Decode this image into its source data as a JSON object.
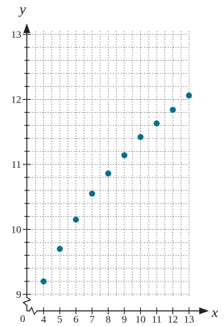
{
  "chart_data": {
    "type": "scatter",
    "title": "",
    "xlabel": "x",
    "ylabel": "y",
    "origin_label": "0",
    "xlim": [
      3,
      13.6
    ],
    "ylim": [
      8.95,
      13.05
    ],
    "x_ticks": [
      4,
      5,
      6,
      7,
      8,
      9,
      10,
      11,
      12,
      13
    ],
    "y_ticks": [
      9,
      10,
      11,
      12,
      13
    ],
    "y_minor_step": 0.2,
    "grid": true,
    "axis_breaks": true,
    "marker_color": "#0d6c8e",
    "points": [
      {
        "x": 4,
        "y": 9.2
      },
      {
        "x": 5,
        "y": 9.7
      },
      {
        "x": 6,
        "y": 10.15
      },
      {
        "x": 7,
        "y": 10.55
      },
      {
        "x": 8,
        "y": 10.86
      },
      {
        "x": 9,
        "y": 11.14
      },
      {
        "x": 10,
        "y": 11.42
      },
      {
        "x": 11,
        "y": 11.63
      },
      {
        "x": 12,
        "y": 11.84
      },
      {
        "x": 13,
        "y": 12.06
      }
    ]
  }
}
